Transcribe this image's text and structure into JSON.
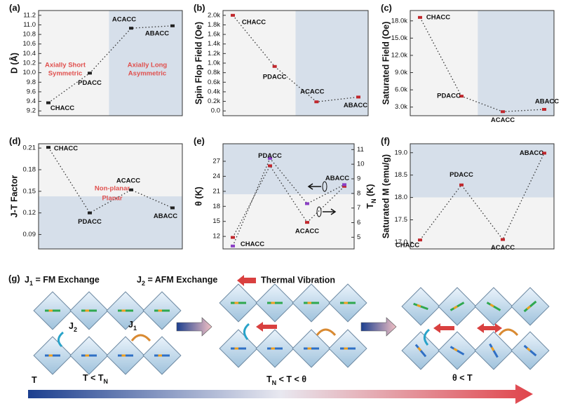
{
  "chart_data": [
    {
      "type": "line",
      "panel": "(a)",
      "ylabel": "D (Å)",
      "categories": [
        "CHACC",
        "PDACC",
        "ACACC",
        "ABACC"
      ],
      "values": [
        9.37,
        9.99,
        10.93,
        10.98
      ],
      "color": "#222222",
      "ylim": [
        9.1,
        11.3
      ],
      "yticks": [
        9.2,
        9.4,
        9.6,
        9.8,
        {
          "value": 10,
          "label": "10.0"
        },
        10.2,
        10.4,
        10.6,
        10.8,
        {
          "value": 11,
          "label": "11.0"
        },
        11.2
      ],
      "annotations": [
        [
          "Axially Short",
          "Symmetric"
        ],
        [
          "Axially Long",
          "Asymmetric"
        ]
      ]
    },
    {
      "type": "line",
      "panel": "(b)",
      "ylabel": "Spin Flop Field (Oe)",
      "categories": [
        "CHACC",
        "PDACC",
        "ACACC",
        "ABACC"
      ],
      "values": [
        2000,
        930,
        190,
        290
      ],
      "color": "#c0282d",
      "ylim": [
        -100,
        2100
      ],
      "yticks": [
        {
          "value": 0,
          "label": "0.0"
        },
        {
          "value": 200,
          "label": "0.2k"
        },
        {
          "value": 400,
          "label": "0.4k"
        },
        {
          "value": 600,
          "label": "0.6k"
        },
        {
          "value": 800,
          "label": "0.8k"
        },
        {
          "value": 1000,
          "label": "1.0k"
        },
        {
          "value": 1200,
          "label": "1.2k"
        },
        {
          "value": 1400,
          "label": "1.4k"
        },
        {
          "value": 1600,
          "label": "1.6k"
        },
        {
          "value": 1800,
          "label": "1.8k"
        },
        {
          "value": 2000,
          "label": "2.0k"
        }
      ]
    },
    {
      "type": "line",
      "panel": "(c)",
      "ylabel": "Saturated Field (Oe)",
      "categories": [
        "CHACC",
        "PDACC",
        "ACACC",
        "ABACC"
      ],
      "values": [
        18600,
        4900,
        2200,
        2600
      ],
      "color": "#c0282d",
      "ylim": [
        1500,
        19800
      ],
      "yticks": [
        {
          "value": 3000,
          "label": "3.0k"
        },
        {
          "value": 6000,
          "label": "6.0k"
        },
        {
          "value": 9000,
          "label": "9.0k"
        },
        {
          "value": 12000,
          "label": "12.0k"
        },
        {
          "value": 15000,
          "label": "15.0k"
        },
        {
          "value": 18000,
          "label": "18.0k"
        }
      ]
    },
    {
      "type": "line",
      "panel": "(d)",
      "ylabel": "J-T Factor",
      "categories": [
        "CHACC",
        "PDACC",
        "ACACC",
        "ABACC"
      ],
      "values": [
        0.211,
        0.12,
        0.152,
        0.127
      ],
      "color": "#222222",
      "ylim": [
        0.07,
        0.216
      ],
      "yticks": [
        0.09,
        0.12,
        0.15,
        0.18,
        0.21
      ],
      "annotations": [
        [
          "Non-planar"
        ],
        [
          "Planar"
        ]
      ]
    },
    {
      "type": "line",
      "panel": "(e)",
      "ylabel": "θ (K)",
      "y2label": [
        "T",
        "N",
        " (K)"
      ],
      "categories": [
        "CHACC",
        "PDACC",
        "ACACC",
        "ABACC"
      ],
      "series": [
        {
          "color": "#c0282d",
          "values": [
            11.8,
            26.1,
            14.8,
            22.0
          ]
        },
        {
          "color": "#8a3fc4",
          "values": [
            4.4,
            10.4,
            7.3,
            8.6
          ],
          "axis": "y2"
        }
      ],
      "ylim": [
        9.5,
        30.5
      ],
      "yticks": [
        12,
        15,
        18,
        21,
        24,
        27
      ],
      "y2lim": [
        4.2,
        11.4
      ],
      "y2ticks": [
        5,
        6,
        7,
        8,
        9,
        10,
        11
      ]
    },
    {
      "type": "line",
      "panel": "(f)",
      "ylabel": "Saturated M (emu/g)",
      "categories": [
        "CHACC",
        "PDACC",
        "ACACC",
        "ABACC"
      ],
      "values": [
        17.05,
        18.28,
        17.06,
        18.99
      ],
      "color": "#c0282d",
      "ylim": [
        16.85,
        19.2
      ],
      "yticks": [
        {
          "value": 17,
          "label": "17.0"
        },
        17.5,
        {
          "value": 18,
          "label": "18.0"
        },
        18.5,
        {
          "value": 19,
          "label": "19.0"
        }
      ]
    }
  ],
  "diagram": {
    "panel": "(g)",
    "j1": [
      "J",
      "1",
      " = FM Exchange"
    ],
    "j2": [
      "J",
      "2",
      " = AFM Exchange"
    ],
    "vibration": "Thermal Vibration",
    "j2_label": [
      "J",
      "2"
    ],
    "j1_label": [
      "J",
      "1"
    ],
    "states": [
      [
        "T"
      ],
      [
        "T < T",
        "N"
      ],
      [
        "T",
        "N",
        " < T < θ"
      ],
      [
        "θ < T"
      ]
    ]
  }
}
